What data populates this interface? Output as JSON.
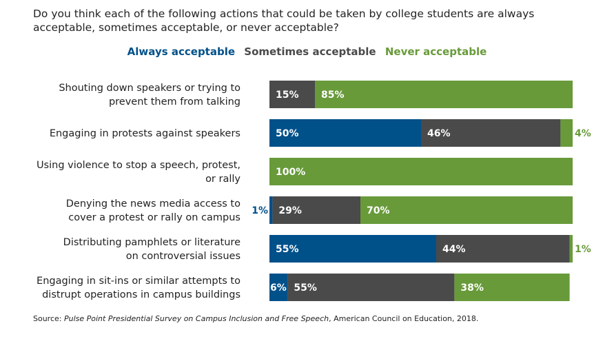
{
  "question": "Do you think each of the following actions that could be taken by college students are always acceptable, sometimes acceptable, or never acceptable?",
  "source": {
    "prefix": "Source: ",
    "title": "Pulse Point Presidential Survey on Campus Inclusion and Free Speech",
    "suffix": ", American Council on Education, 2018."
  },
  "colors": {
    "always": "#00508A",
    "sometimes": "#4A4A4A",
    "never": "#689A3A"
  },
  "chart_data": {
    "type": "bar",
    "orientation": "horizontal",
    "stacked": true,
    "title": "Do you think each of the following actions that could be taken by college students are always acceptable, sometimes acceptable, or never acceptable?",
    "xlabel": "",
    "ylabel": "",
    "xlim": [
      0,
      100
    ],
    "grid": false,
    "legend_position": "top",
    "categories": [
      [
        "Shouting down speakers or trying to",
        "prevent them from talking"
      ],
      [
        "Engaging in protests against speakers"
      ],
      [
        "Using violence to stop a speech, protest,",
        "or rally"
      ],
      [
        "Denying the news media access to",
        "cover a protest or rally on campus"
      ],
      [
        "Distributing pamphlets or literature",
        "on controversial issues"
      ],
      [
        "Engaging in sit-ins or similar attempts to",
        "distrupt operations in campus buildings"
      ]
    ],
    "series": [
      {
        "name": "Always acceptable",
        "key": "always",
        "values": [
          0,
          50,
          0,
          1,
          55,
          6
        ]
      },
      {
        "name": "Sometimes acceptable",
        "key": "sometimes",
        "values": [
          15,
          46,
          0,
          29,
          44,
          55
        ]
      },
      {
        "name": "Never acceptable",
        "key": "never",
        "values": [
          85,
          4,
          100,
          70,
          1,
          38
        ]
      }
    ]
  }
}
